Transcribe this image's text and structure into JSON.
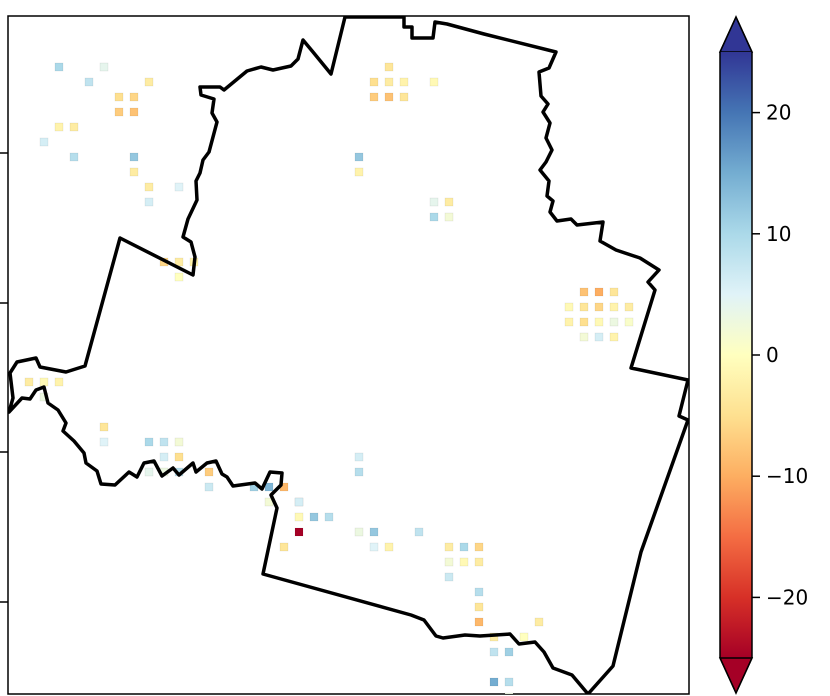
{
  "map": {
    "boundary_outline": "region-boundary",
    "pixels": [
      {
        "c": 3,
        "r": 3,
        "v": 10
      },
      {
        "c": 5,
        "r": 4,
        "v": 8
      },
      {
        "c": 6,
        "r": 3,
        "v": 4
      },
      {
        "c": 7,
        "r": 5,
        "v": -5
      },
      {
        "c": 7,
        "r": 6,
        "v": -7
      },
      {
        "c": 8,
        "r": 6,
        "v": -8
      },
      {
        "c": 8,
        "r": 5,
        "v": -6
      },
      {
        "c": 9,
        "r": 4,
        "v": -3
      },
      {
        "c": 3,
        "r": 7,
        "v": -2
      },
      {
        "c": 4,
        "r": 7,
        "v": -3
      },
      {
        "c": 2,
        "r": 8,
        "v": 6
      },
      {
        "c": 4,
        "r": 9,
        "v": 9
      },
      {
        "c": 8,
        "r": 9,
        "v": 12
      },
      {
        "c": 8,
        "r": 10,
        "v": -3
      },
      {
        "c": 9,
        "r": 12,
        "v": 6
      },
      {
        "c": 9,
        "r": 11,
        "v": -3
      },
      {
        "c": 11,
        "r": 11,
        "v": 5
      },
      {
        "c": 10,
        "r": 16,
        "v": -6
      },
      {
        "c": 11,
        "r": 16,
        "v": -3
      },
      {
        "c": 11,
        "r": 17,
        "v": 0
      },
      {
        "c": 12,
        "r": 16,
        "v": -2
      },
      {
        "c": 1,
        "r": 24,
        "v": -3
      },
      {
        "c": 2,
        "r": 24,
        "v": -1
      },
      {
        "c": 3,
        "r": 24,
        "v": -2
      },
      {
        "c": 2,
        "r": 25,
        "v": 3
      },
      {
        "c": 6,
        "r": 27,
        "v": -4
      },
      {
        "c": 6,
        "r": 28,
        "v": 5
      },
      {
        "c": 9,
        "r": 28,
        "v": 10
      },
      {
        "c": 10,
        "r": 28,
        "v": 8
      },
      {
        "c": 11,
        "r": 28,
        "v": 2
      },
      {
        "c": 10,
        "r": 29,
        "v": 6
      },
      {
        "c": 11,
        "r": 29,
        "v": -5
      },
      {
        "c": 9,
        "r": 30,
        "v": 4
      },
      {
        "c": 10,
        "r": 30,
        "v": 3
      },
      {
        "c": 11,
        "r": 30,
        "v": 9
      },
      {
        "c": 13,
        "r": 30,
        "v": -7
      },
      {
        "c": 13,
        "r": 31,
        "v": 7
      },
      {
        "c": 16,
        "r": 31,
        "v": 11
      },
      {
        "c": 17,
        "r": 31,
        "v": 14
      },
      {
        "c": 18,
        "r": 31,
        "v": -9
      },
      {
        "c": 17,
        "r": 32,
        "v": 2
      },
      {
        "c": 19,
        "r": 32,
        "v": -3
      },
      {
        "c": 19,
        "r": 33,
        "v": -1
      },
      {
        "c": 19,
        "r": 32,
        "v": 6
      },
      {
        "c": 20,
        "r": 33,
        "v": 12
      },
      {
        "c": 21,
        "r": 33,
        "v": 9
      },
      {
        "c": 19,
        "r": 34,
        "v": -25
      },
      {
        "c": 18,
        "r": 35,
        "v": -4
      },
      {
        "c": 23,
        "r": 29,
        "v": 6
      },
      {
        "c": 23,
        "r": 30,
        "v": 9
      },
      {
        "c": 23,
        "r": 34,
        "v": 3
      },
      {
        "c": 24,
        "r": 34,
        "v": 12
      },
      {
        "c": 24,
        "r": 35,
        "v": 5
      },
      {
        "c": 25,
        "r": 35,
        "v": -2
      },
      {
        "c": 27,
        "r": 34,
        "v": 8
      },
      {
        "c": 29,
        "r": 35,
        "v": -3
      },
      {
        "c": 30,
        "r": 35,
        "v": 10
      },
      {
        "c": 31,
        "r": 35,
        "v": -6
      },
      {
        "c": 29,
        "r": 36,
        "v": 2
      },
      {
        "c": 29,
        "r": 37,
        "v": 7
      },
      {
        "c": 30,
        "r": 36,
        "v": -1
      },
      {
        "c": 31,
        "r": 36,
        "v": -3
      },
      {
        "c": 31,
        "r": 38,
        "v": 9
      },
      {
        "c": 31,
        "r": 39,
        "v": -4
      },
      {
        "c": 31,
        "r": 40,
        "v": -9
      },
      {
        "c": 32,
        "r": 41,
        "v": -3
      },
      {
        "c": 32,
        "r": 42,
        "v": 8
      },
      {
        "c": 33,
        "r": 42,
        "v": 11
      },
      {
        "c": 35,
        "r": 40,
        "v": -3
      },
      {
        "c": 34,
        "r": 41,
        "v": 0
      },
      {
        "c": 32,
        "r": 44,
        "v": 15
      },
      {
        "c": 33,
        "r": 44,
        "v": 9
      },
      {
        "c": 33,
        "r": 45,
        "v": 3
      },
      {
        "c": 24,
        "r": 4,
        "v": -5
      },
      {
        "c": 25,
        "r": 4,
        "v": -3
      },
      {
        "c": 26,
        "r": 4,
        "v": -2
      },
      {
        "c": 24,
        "r": 5,
        "v": -7
      },
      {
        "c": 25,
        "r": 5,
        "v": -8
      },
      {
        "c": 26,
        "r": 5,
        "v": -4
      },
      {
        "c": 25,
        "r": 3,
        "v": -4
      },
      {
        "c": 23,
        "r": 9,
        "v": 12
      },
      {
        "c": 23,
        "r": 10,
        "v": -2
      },
      {
        "c": 28,
        "r": 4,
        "v": -1
      },
      {
        "c": 28,
        "r": 12,
        "v": 4
      },
      {
        "c": 29,
        "r": 12,
        "v": -3
      },
      {
        "c": 28,
        "r": 13,
        "v": 10
      },
      {
        "c": 29,
        "r": 13,
        "v": 2
      },
      {
        "c": 37,
        "r": 19,
        "v": -1
      },
      {
        "c": 38,
        "r": 19,
        "v": -4
      },
      {
        "c": 39,
        "r": 19,
        "v": -6
      },
      {
        "c": 40,
        "r": 19,
        "v": -2
      },
      {
        "c": 41,
        "r": 19,
        "v": -3
      },
      {
        "c": 37,
        "r": 20,
        "v": -2
      },
      {
        "c": 38,
        "r": 20,
        "v": -5
      },
      {
        "c": 39,
        "r": 20,
        "v": -1
      },
      {
        "c": 40,
        "r": 20,
        "v": 3
      },
      {
        "c": 41,
        "r": 20,
        "v": 1
      },
      {
        "c": 38,
        "r": 21,
        "v": 2
      },
      {
        "c": 39,
        "r": 21,
        "v": 6
      },
      {
        "c": 40,
        "r": 21,
        "v": -2
      },
      {
        "c": 38,
        "r": 18,
        "v": -8
      },
      {
        "c": 39,
        "r": 18,
        "v": -10
      },
      {
        "c": 40,
        "r": 18,
        "v": -4
      }
    ]
  },
  "colorbar": {
    "vmin": -25,
    "vmax": 25,
    "extend": "both",
    "colormap": "RdYlBu",
    "ticks": [
      {
        "value": 20,
        "label": "20"
      },
      {
        "value": 10,
        "label": "10"
      },
      {
        "value": 0,
        "label": "0"
      },
      {
        "value": -10,
        "label": "−10"
      },
      {
        "value": -20,
        "label": "−20"
      }
    ],
    "stops": [
      "#a50026",
      "#d73027",
      "#f46d43",
      "#fdae61",
      "#fee090",
      "#ffffbf",
      "#e0f3f8",
      "#abd9e9",
      "#74add1",
      "#4575b4",
      "#313695"
    ]
  }
}
